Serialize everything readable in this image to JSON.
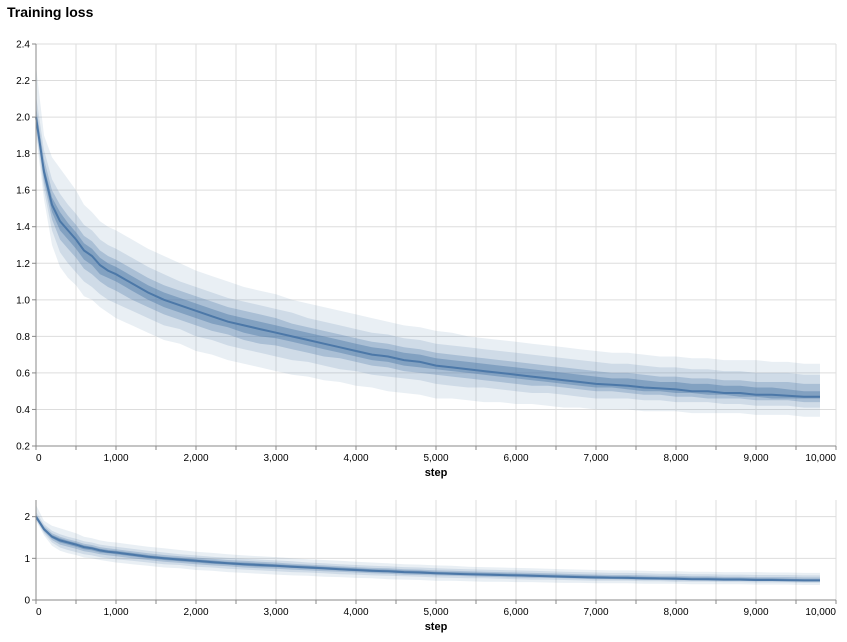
{
  "chart_data": {
    "type": "area",
    "title": "Training loss",
    "series_color": "#4c78a8",
    "bands": [
      {
        "name": "5-95",
        "opacity": 0.12
      },
      {
        "name": "15-85",
        "opacity": 0.16
      },
      {
        "name": "25-75",
        "opacity": 0.28
      },
      {
        "name": "35-65",
        "opacity": 0.42
      }
    ],
    "charts": [
      {
        "name": "main",
        "xlabel": "step",
        "ylabel": "",
        "xlim": [
          0,
          10000
        ],
        "ylim": [
          0.2,
          2.4
        ],
        "xticks": [
          0,
          1000,
          2000,
          3000,
          4000,
          5000,
          6000,
          7000,
          8000,
          9000,
          10000
        ],
        "xtick_labels": [
          "0",
          "1,000",
          "2,000",
          "3,000",
          "4,000",
          "5,000",
          "6,000",
          "7,000",
          "8,000",
          "9,000",
          "10,000"
        ],
        "yticks": [
          0.2,
          0.4,
          0.6,
          0.8,
          1.0,
          1.2,
          1.4,
          1.6,
          1.8,
          2.0,
          2.2,
          2.4
        ],
        "ytick_labels": [
          "0.2",
          "0.4",
          "0.6",
          "0.8",
          "1.0",
          "1.2",
          "1.4",
          "1.6",
          "1.8",
          "2.0",
          "2.2",
          "2.4"
        ],
        "grid": true
      },
      {
        "name": "overview",
        "xlabel": "step",
        "ylabel": "",
        "xlim": [
          0,
          10000
        ],
        "ylim": [
          0,
          2.4
        ],
        "xticks": [
          0,
          1000,
          2000,
          3000,
          4000,
          5000,
          6000,
          7000,
          8000,
          9000,
          10000
        ],
        "xtick_labels": [
          "0",
          "1,000",
          "2,000",
          "3,000",
          "4,000",
          "5,000",
          "6,000",
          "7,000",
          "8,000",
          "9,000",
          "10,000"
        ],
        "yticks": [
          0,
          1,
          2
        ],
        "ytick_labels": [
          "0",
          "1",
          "2"
        ],
        "grid": true
      }
    ],
    "series": [
      {
        "x": [
          0,
          100,
          200,
          300,
          400,
          500,
          600,
          700,
          800,
          900,
          1000,
          1200,
          1400,
          1600,
          1800,
          2000,
          2200,
          2400,
          2600,
          2800,
          3000,
          3200,
          3400,
          3600,
          3800,
          4000,
          4200,
          4400,
          4600,
          4800,
          5000,
          5200,
          5400,
          5600,
          5800,
          6000,
          6200,
          6400,
          6600,
          6800,
          7000,
          7200,
          7400,
          7600,
          7800,
          8000,
          8200,
          8400,
          8600,
          8800,
          9000,
          9200,
          9400,
          9600,
          9800
        ],
        "median": [
          2.0,
          1.7,
          1.52,
          1.43,
          1.38,
          1.33,
          1.27,
          1.24,
          1.19,
          1.16,
          1.14,
          1.09,
          1.04,
          1.0,
          0.97,
          0.94,
          0.91,
          0.88,
          0.86,
          0.84,
          0.82,
          0.8,
          0.78,
          0.76,
          0.74,
          0.72,
          0.7,
          0.69,
          0.67,
          0.66,
          0.64,
          0.63,
          0.62,
          0.61,
          0.6,
          0.59,
          0.58,
          0.57,
          0.56,
          0.55,
          0.54,
          0.535,
          0.53,
          0.52,
          0.515,
          0.51,
          0.5,
          0.5,
          0.49,
          0.49,
          0.48,
          0.48,
          0.475,
          0.47,
          0.47
        ],
        "p5": [
          1.9,
          1.55,
          1.3,
          1.18,
          1.12,
          1.08,
          1.02,
          1.0,
          0.96,
          0.93,
          0.9,
          0.86,
          0.82,
          0.78,
          0.76,
          0.72,
          0.7,
          0.67,
          0.65,
          0.63,
          0.61,
          0.59,
          0.58,
          0.56,
          0.55,
          0.53,
          0.52,
          0.5,
          0.49,
          0.48,
          0.46,
          0.46,
          0.45,
          0.44,
          0.44,
          0.43,
          0.43,
          0.42,
          0.41,
          0.41,
          0.4,
          0.4,
          0.4,
          0.39,
          0.39,
          0.39,
          0.38,
          0.38,
          0.38,
          0.38,
          0.37,
          0.37,
          0.37,
          0.36,
          0.36
        ],
        "p95": [
          2.28,
          1.9,
          1.78,
          1.72,
          1.66,
          1.6,
          1.52,
          1.48,
          1.43,
          1.4,
          1.38,
          1.33,
          1.28,
          1.24,
          1.2,
          1.16,
          1.13,
          1.1,
          1.07,
          1.05,
          1.03,
          1.0,
          0.98,
          0.96,
          0.94,
          0.92,
          0.9,
          0.88,
          0.86,
          0.85,
          0.83,
          0.82,
          0.8,
          0.79,
          0.78,
          0.77,
          0.76,
          0.75,
          0.74,
          0.73,
          0.72,
          0.71,
          0.71,
          0.7,
          0.69,
          0.69,
          0.68,
          0.68,
          0.67,
          0.67,
          0.67,
          0.66,
          0.66,
          0.65,
          0.65
        ],
        "p15": [
          1.93,
          1.6,
          1.38,
          1.26,
          1.2,
          1.15,
          1.1,
          1.07,
          1.03,
          1.0,
          0.98,
          0.94,
          0.9,
          0.86,
          0.84,
          0.8,
          0.78,
          0.75,
          0.73,
          0.71,
          0.69,
          0.67,
          0.66,
          0.64,
          0.62,
          0.61,
          0.59,
          0.58,
          0.57,
          0.56,
          0.54,
          0.53,
          0.52,
          0.52,
          0.51,
          0.5,
          0.49,
          0.49,
          0.48,
          0.47,
          0.46,
          0.46,
          0.46,
          0.45,
          0.45,
          0.44,
          0.44,
          0.44,
          0.43,
          0.43,
          0.42,
          0.42,
          0.42,
          0.41,
          0.41
        ],
        "p85": [
          2.12,
          1.82,
          1.66,
          1.58,
          1.52,
          1.47,
          1.41,
          1.38,
          1.33,
          1.3,
          1.28,
          1.23,
          1.18,
          1.14,
          1.1,
          1.07,
          1.04,
          1.01,
          0.99,
          0.97,
          0.95,
          0.93,
          0.9,
          0.88,
          0.86,
          0.84,
          0.82,
          0.81,
          0.79,
          0.78,
          0.76,
          0.75,
          0.74,
          0.73,
          0.72,
          0.71,
          0.7,
          0.69,
          0.68,
          0.67,
          0.66,
          0.65,
          0.65,
          0.64,
          0.63,
          0.63,
          0.62,
          0.62,
          0.61,
          0.61,
          0.6,
          0.6,
          0.6,
          0.59,
          0.59
        ],
        "p25": [
          1.95,
          1.64,
          1.44,
          1.33,
          1.28,
          1.23,
          1.17,
          1.14,
          1.1,
          1.07,
          1.05,
          1.0,
          0.96,
          0.92,
          0.89,
          0.86,
          0.83,
          0.81,
          0.78,
          0.76,
          0.75,
          0.73,
          0.71,
          0.69,
          0.68,
          0.66,
          0.64,
          0.63,
          0.61,
          0.6,
          0.59,
          0.58,
          0.57,
          0.56,
          0.55,
          0.54,
          0.53,
          0.53,
          0.52,
          0.51,
          0.5,
          0.5,
          0.49,
          0.48,
          0.48,
          0.47,
          0.47,
          0.46,
          0.46,
          0.46,
          0.45,
          0.45,
          0.45,
          0.44,
          0.44
        ],
        "p75": [
          2.06,
          1.77,
          1.6,
          1.52,
          1.46,
          1.41,
          1.35,
          1.32,
          1.27,
          1.24,
          1.22,
          1.17,
          1.12,
          1.08,
          1.05,
          1.02,
          0.99,
          0.96,
          0.94,
          0.92,
          0.9,
          0.87,
          0.85,
          0.83,
          0.81,
          0.79,
          0.77,
          0.76,
          0.74,
          0.73,
          0.71,
          0.7,
          0.69,
          0.68,
          0.67,
          0.66,
          0.65,
          0.64,
          0.63,
          0.62,
          0.61,
          0.6,
          0.6,
          0.59,
          0.58,
          0.58,
          0.57,
          0.57,
          0.56,
          0.56,
          0.55,
          0.55,
          0.55,
          0.54,
          0.54
        ],
        "p35": [
          1.97,
          1.67,
          1.48,
          1.38,
          1.33,
          1.28,
          1.22,
          1.19,
          1.14,
          1.12,
          1.1,
          1.05,
          1.0,
          0.96,
          0.93,
          0.9,
          0.87,
          0.85,
          0.82,
          0.8,
          0.79,
          0.77,
          0.75,
          0.73,
          0.71,
          0.69,
          0.67,
          0.66,
          0.64,
          0.63,
          0.62,
          0.61,
          0.6,
          0.59,
          0.58,
          0.57,
          0.56,
          0.55,
          0.54,
          0.53,
          0.52,
          0.52,
          0.51,
          0.5,
          0.5,
          0.49,
          0.49,
          0.48,
          0.48,
          0.47,
          0.47,
          0.46,
          0.46,
          0.46,
          0.46
        ],
        "p65": [
          2.03,
          1.73,
          1.56,
          1.48,
          1.42,
          1.37,
          1.31,
          1.28,
          1.23,
          1.2,
          1.18,
          1.13,
          1.08,
          1.04,
          1.01,
          0.98,
          0.95,
          0.92,
          0.9,
          0.88,
          0.86,
          0.84,
          0.82,
          0.8,
          0.78,
          0.76,
          0.74,
          0.73,
          0.71,
          0.7,
          0.68,
          0.67,
          0.66,
          0.65,
          0.64,
          0.63,
          0.62,
          0.61,
          0.6,
          0.59,
          0.58,
          0.57,
          0.57,
          0.56,
          0.55,
          0.55,
          0.54,
          0.54,
          0.53,
          0.53,
          0.52,
          0.52,
          0.51,
          0.5,
          0.5
        ]
      }
    ]
  }
}
